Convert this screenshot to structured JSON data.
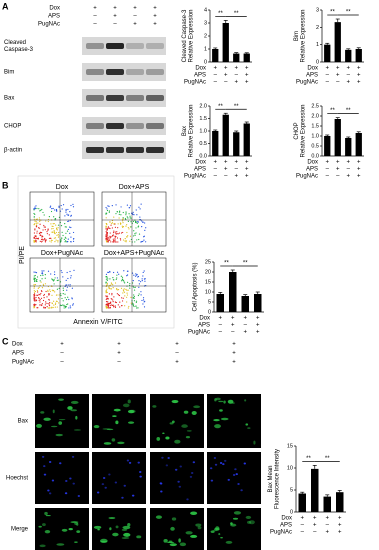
{
  "panels": {
    "a": "A",
    "b": "B",
    "c": "C"
  },
  "blot": {
    "treatments": [
      {
        "name": "Dox",
        "signs": [
          "+",
          "+",
          "+",
          "+"
        ]
      },
      {
        "name": "APS",
        "signs": [
          "–",
          "+",
          "–",
          "+"
        ]
      },
      {
        "name": "PugNAc",
        "signs": [
          "–",
          "–",
          "+",
          "+"
        ]
      }
    ],
    "rows": [
      [
        "Cleaved",
        "Caspase-3"
      ],
      [
        "Bim"
      ],
      [
        "Bax"
      ],
      [
        "CHOP"
      ],
      [
        "β-actin"
      ]
    ]
  },
  "flow": {
    "panels": [
      "Dox",
      "Dox+APS",
      "Dox+PugNAc",
      "Dox+APS+PugNAc"
    ],
    "xlabel": "Annexin V/FITC",
    "ylabel": "PI/PE"
  },
  "microscopy": {
    "treatments": [
      {
        "name": "Dox",
        "signs": [
          "+",
          "+",
          "+",
          "+"
        ]
      },
      {
        "name": "APS",
        "signs": [
          "–",
          "+",
          "–",
          "+"
        ]
      },
      {
        "name": "PugNAc",
        "signs": [
          "–",
          "–",
          "+",
          "+"
        ]
      }
    ],
    "rows": [
      "Bax",
      "Hoechst",
      "Merge"
    ]
  },
  "chart_data": [
    {
      "type": "bar",
      "ylabel": [
        "Cleaved Caspase-3",
        "Relative Expression"
      ],
      "values": [
        1.0,
        3.0,
        0.65,
        0.65
      ],
      "errors": [
        0.08,
        0.2,
        0.07,
        0.06
      ],
      "color": "#000000",
      "ylim": [
        0,
        4
      ],
      "yticks": [
        0,
        1,
        2,
        3,
        4
      ],
      "annotations": [
        "**",
        "**"
      ],
      "treatments": [
        {
          "name": "Dox",
          "signs": [
            "+",
            "+",
            "+",
            "+"
          ]
        },
        {
          "name": "APS",
          "signs": [
            "–",
            "+",
            "–",
            "+"
          ]
        },
        {
          "name": "PugNAc",
          "signs": [
            "–",
            "–",
            "+",
            "+"
          ]
        }
      ]
    },
    {
      "type": "bar",
      "ylabel": [
        "Bim",
        "Relative Expression"
      ],
      "values": [
        1.0,
        2.3,
        0.7,
        0.75
      ],
      "errors": [
        0.08,
        0.18,
        0.06,
        0.07
      ],
      "color": "#000000",
      "ylim": [
        0,
        3
      ],
      "yticks": [
        0,
        1,
        2,
        3
      ],
      "annotations": [
        "**",
        "**"
      ],
      "treatments": [
        {
          "name": "Dox",
          "signs": [
            "+",
            "+",
            "+",
            "+"
          ]
        },
        {
          "name": "APS",
          "signs": [
            "–",
            "+",
            "–",
            "+"
          ]
        },
        {
          "name": "PugNAc",
          "signs": [
            "–",
            "–",
            "+",
            "+"
          ]
        }
      ]
    },
    {
      "type": "bar",
      "ylabel": [
        "Bax",
        "Relative Expression"
      ],
      "values": [
        1.0,
        1.65,
        0.95,
        1.3
      ],
      "errors": [
        0.04,
        0.06,
        0.05,
        0.06
      ],
      "color": "#000000",
      "ylim": [
        0,
        2
      ],
      "yticks": [
        {
          "value": 0,
          "label": "0.0"
        },
        {
          "value": 0.5,
          "label": "0.5"
        },
        {
          "value": 1,
          "label": "1.0"
        },
        {
          "value": 1.5,
          "label": "1.5"
        },
        {
          "value": 2,
          "label": "2.0"
        }
      ],
      "annotations": [
        "**",
        "**"
      ],
      "treatments": [
        {
          "name": "Dox",
          "signs": [
            "+",
            "+",
            "+",
            "+"
          ]
        },
        {
          "name": "APS",
          "signs": [
            "–",
            "+",
            "–",
            "+"
          ]
        },
        {
          "name": "PugNAc",
          "signs": [
            "–",
            "–",
            "+",
            "+"
          ]
        }
      ]
    },
    {
      "type": "bar",
      "ylabel": [
        "CHOP",
        "Relative Expression"
      ],
      "values": [
        1.0,
        1.85,
        0.9,
        1.15
      ],
      "errors": [
        0.05,
        0.07,
        0.05,
        0.06
      ],
      "color": "#000000",
      "ylim": [
        0,
        2.5
      ],
      "yticks": [
        {
          "value": 0,
          "label": "0.0"
        },
        {
          "value": 0.5,
          "label": "0.5"
        },
        {
          "value": 1,
          "label": "1.0"
        },
        {
          "value": 1.5,
          "label": "1.5"
        },
        {
          "value": 2,
          "label": "2.0"
        },
        {
          "value": 2.5,
          "label": "2.5"
        }
      ],
      "annotations": [
        "**",
        "**"
      ],
      "treatments": [
        {
          "name": "Dox",
          "signs": [
            "+",
            "+",
            "+",
            "+"
          ]
        },
        {
          "name": "APS",
          "signs": [
            "–",
            "+",
            "–",
            "+"
          ]
        },
        {
          "name": "PugNAc",
          "signs": [
            "–",
            "–",
            "+",
            "+"
          ]
        }
      ]
    },
    {
      "type": "bar",
      "ylabel": [
        "Cell Apoptosis (%)"
      ],
      "values": [
        9,
        20,
        8,
        9
      ],
      "errors": [
        0.8,
        1.0,
        0.7,
        1.0
      ],
      "color": "#000000",
      "ylim": [
        0,
        25
      ],
      "yticks": [
        0,
        5,
        10,
        15,
        20,
        25
      ],
      "annotations": [
        "**",
        "**"
      ],
      "treatments": [
        {
          "name": "Dox",
          "signs": [
            "+",
            "+",
            "+",
            "+"
          ]
        },
        {
          "name": "APS",
          "signs": [
            "–",
            "+",
            "–",
            "+"
          ]
        },
        {
          "name": "PugNAc",
          "signs": [
            "–",
            "–",
            "+",
            "+"
          ]
        }
      ]
    },
    {
      "type": "bar",
      "ylabel": [
        "Bax Mean",
        "Fluorescence Intensity"
      ],
      "values": [
        4.2,
        9.8,
        3.5,
        4.5
      ],
      "errors": [
        0.3,
        0.8,
        0.4,
        0.4
      ],
      "color": "#000000",
      "ylim": [
        0,
        15
      ],
      "yticks": [
        0,
        5,
        10,
        15
      ],
      "annotations": [
        "**",
        "**"
      ],
      "treatments": [
        {
          "name": "Dox",
          "signs": [
            "+",
            "+",
            "+",
            "+"
          ]
        },
        {
          "name": "APS",
          "signs": [
            "–",
            "+",
            "–",
            "+"
          ]
        },
        {
          "name": "PugNAc",
          "signs": [
            "–",
            "–",
            "+",
            "+"
          ]
        }
      ]
    }
  ]
}
